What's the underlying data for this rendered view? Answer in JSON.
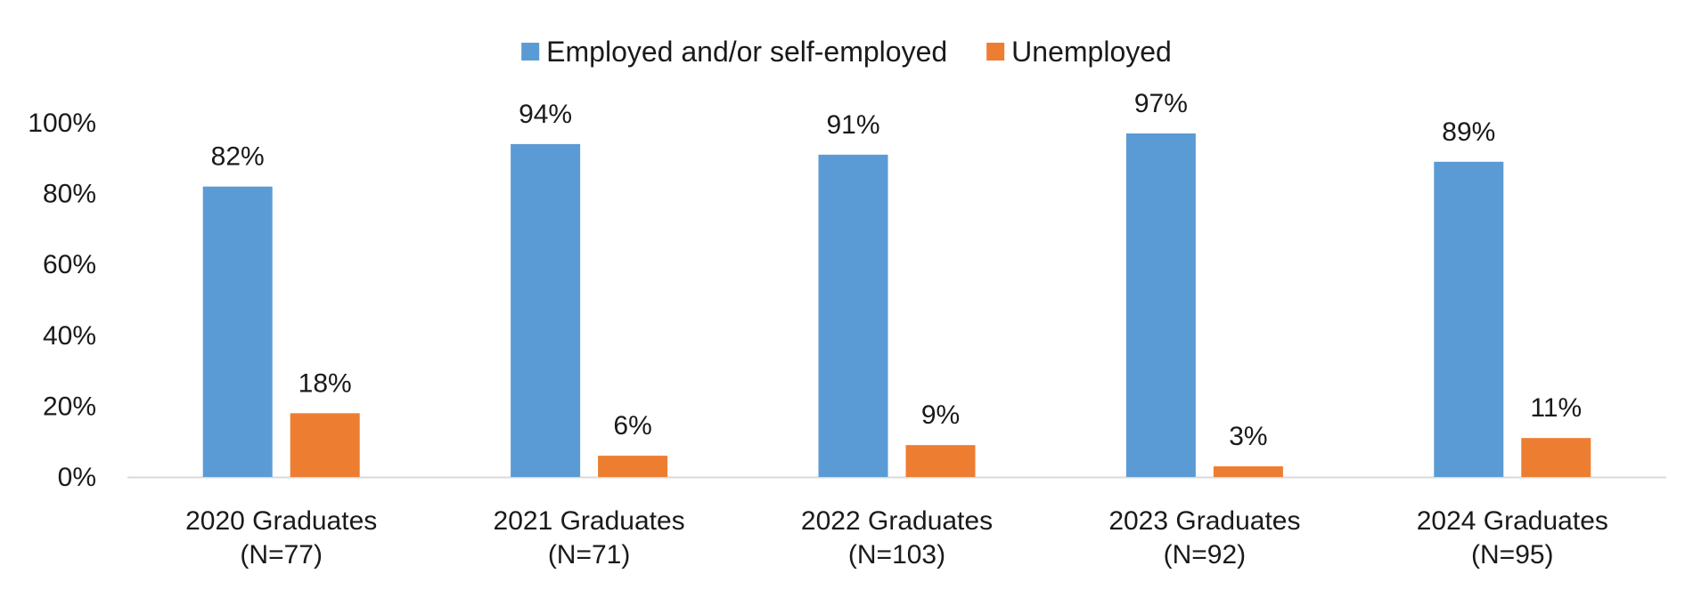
{
  "chart_data": {
    "type": "bar",
    "title": "",
    "xlabel": "",
    "ylabel": "",
    "categories": [
      [
        "2020 Graduates",
        "(N=77)"
      ],
      [
        "2021 Graduates",
        "(N=71)"
      ],
      [
        "2022 Graduates",
        "(N=103)"
      ],
      [
        "2023 Graduates",
        "(N=92)"
      ],
      [
        "2024 Graduates",
        "(N=95)"
      ]
    ],
    "series": [
      {
        "name": "Employed and/or self-employed",
        "values": [
          82,
          94,
          91,
          97,
          89
        ],
        "color": "#5B9BD5"
      },
      {
        "name": "Unemployed",
        "values": [
          18,
          6,
          9,
          3,
          11
        ],
        "color": "#ED7D31"
      }
    ],
    "data_labels": [
      [
        "82%",
        "94%",
        "91%",
        "97%",
        "89%"
      ],
      [
        "18%",
        "6%",
        "9%",
        "3%",
        "11%"
      ]
    ],
    "ylim": [
      0,
      100
    ],
    "yticks": [
      0,
      20,
      40,
      60,
      80,
      100
    ],
    "ytick_labels": [
      "0%",
      "20%",
      "40%",
      "60%",
      "80%",
      "100%"
    ],
    "grid": false,
    "legend_position": "top-center",
    "axis_color": "#D9D9D9"
  }
}
